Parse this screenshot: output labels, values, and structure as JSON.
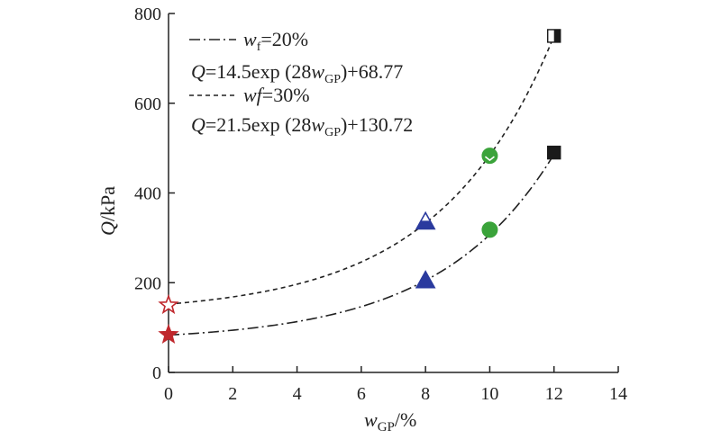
{
  "chart_data": {
    "type": "scatter",
    "xlim": [
      0,
      14
    ],
    "ylim": [
      0,
      800
    ],
    "x_ticks": [
      0,
      2,
      4,
      6,
      8,
      10,
      12,
      14
    ],
    "y_ticks": [
      0,
      200,
      400,
      600,
      800
    ],
    "x_tick_labels": [
      "0",
      "2",
      "4",
      "6",
      "8",
      "10",
      "12",
      "14"
    ],
    "y_tick_labels": [
      "0",
      "200",
      "400",
      "600",
      "800"
    ],
    "xlabel": {
      "var": "w",
      "sub": "GP",
      "unit": "/%"
    },
    "ylabel": {
      "var": "Q",
      "unit": "/kPa"
    },
    "series": [
      {
        "legend": {
          "var": "w",
          "sub": "f",
          "value": "=20%"
        },
        "equation": {
          "lhs": "Q",
          "pre": "=14.5exp (28",
          "var": "w",
          "sub": "GP",
          "post": ")+68.77"
        },
        "fit": {
          "a": 14.5,
          "b": 28,
          "c": 68.77
        },
        "line_style": "dash-dot",
        "points": [
          {
            "x": 0,
            "y": 84,
            "marker": "star",
            "fill": "#c0282d",
            "stroke": "#c0282d"
          },
          {
            "x": 8,
            "y": 205,
            "marker": "triangle",
            "fill": "#2a3a9e",
            "stroke": "#2a3a9e"
          },
          {
            "x": 10,
            "y": 318,
            "marker": "circle",
            "fill": "#3aa33a",
            "stroke": "#3aa33a"
          },
          {
            "x": 12,
            "y": 490,
            "marker": "square",
            "fill": "#1a1a1a",
            "stroke": "#1a1a1a"
          }
        ]
      },
      {
        "legend": {
          "var": "wf",
          "value": "=30%"
        },
        "equation": {
          "lhs": "Q",
          "pre": "=21.5exp (28",
          "var": "w",
          "sub": "GP",
          "post": ")+130.72"
        },
        "fit": {
          "a": 21.5,
          "b": 28,
          "c": 130.72
        },
        "line_style": "dashed",
        "points": [
          {
            "x": 0,
            "y": 150,
            "marker": "star-open",
            "fill": "#ffffff",
            "stroke": "#c0282d"
          },
          {
            "x": 8,
            "y": 336,
            "marker": "triangle-half",
            "fill": "#2a3a9e",
            "stroke": "#2a3a9e"
          },
          {
            "x": 10,
            "y": 483,
            "marker": "circle-notch",
            "fill": "#3aa33a",
            "stroke": "#3aa33a"
          },
          {
            "x": 12,
            "y": 750,
            "marker": "square-half",
            "fill": "#1a1a1a",
            "stroke": "#1a1a1a"
          }
        ]
      }
    ]
  }
}
